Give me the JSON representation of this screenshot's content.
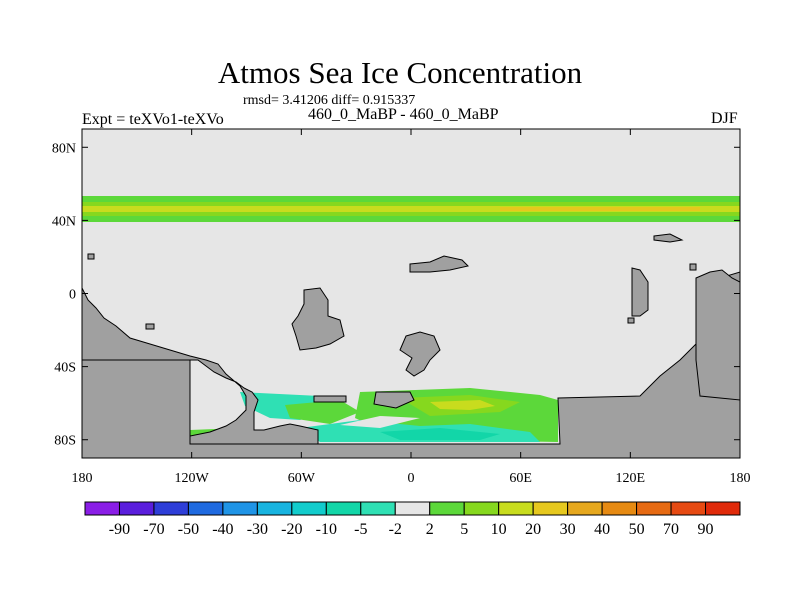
{
  "chart_data": {
    "type": "heatmap",
    "title": "Atmos Sea Ice Concentration",
    "stats": "rmsd= 3.41206 diff= 0.915337",
    "expt_label": "Expt = teXVo1-teXVo",
    "runs_label": "460_0_MaBP - 460_0_MaBP",
    "season": "DJF",
    "x_ticks": [
      {
        "value": -180,
        "label": "180"
      },
      {
        "value": -120,
        "label": "120W"
      },
      {
        "value": -60,
        "label": "60W"
      },
      {
        "value": 0,
        "label": "0"
      },
      {
        "value": 60,
        "label": "60E"
      },
      {
        "value": 120,
        "label": "120E"
      },
      {
        "value": 180,
        "label": "180"
      }
    ],
    "y_ticks": [
      {
        "value": 80,
        "label": "80N"
      },
      {
        "value": 40,
        "label": "40N"
      },
      {
        "value": 0,
        "label": "0"
      },
      {
        "value": -40,
        "label": "40S"
      },
      {
        "value": -80,
        "label": "80S"
      }
    ],
    "xlim": [
      -180,
      180
    ],
    "ylim": [
      -90,
      90
    ],
    "colorbar": {
      "labels": [
        "-90",
        "-70",
        "-50",
        "-40",
        "-30",
        "-20",
        "-10",
        "-5",
        "-2",
        "2",
        "5",
        "10",
        "20",
        "30",
        "40",
        "50",
        "70",
        "90"
      ],
      "colors": [
        "#8a1ee6",
        "#5a1edc",
        "#2e3ed8",
        "#1f6ae0",
        "#1f94e6",
        "#18b4e0",
        "#12cccc",
        "#12d6a8",
        "#2fe0b4",
        "#e6e6e6",
        "#5cd83a",
        "#86d81e",
        "#c8dc1e",
        "#e6c81e",
        "#e6a81e",
        "#e68a12",
        "#e66a12",
        "#e64a12",
        "#e02a0a"
      ]
    },
    "background_color": "#e6e6e6",
    "land_color": "#a0a0a0"
  }
}
